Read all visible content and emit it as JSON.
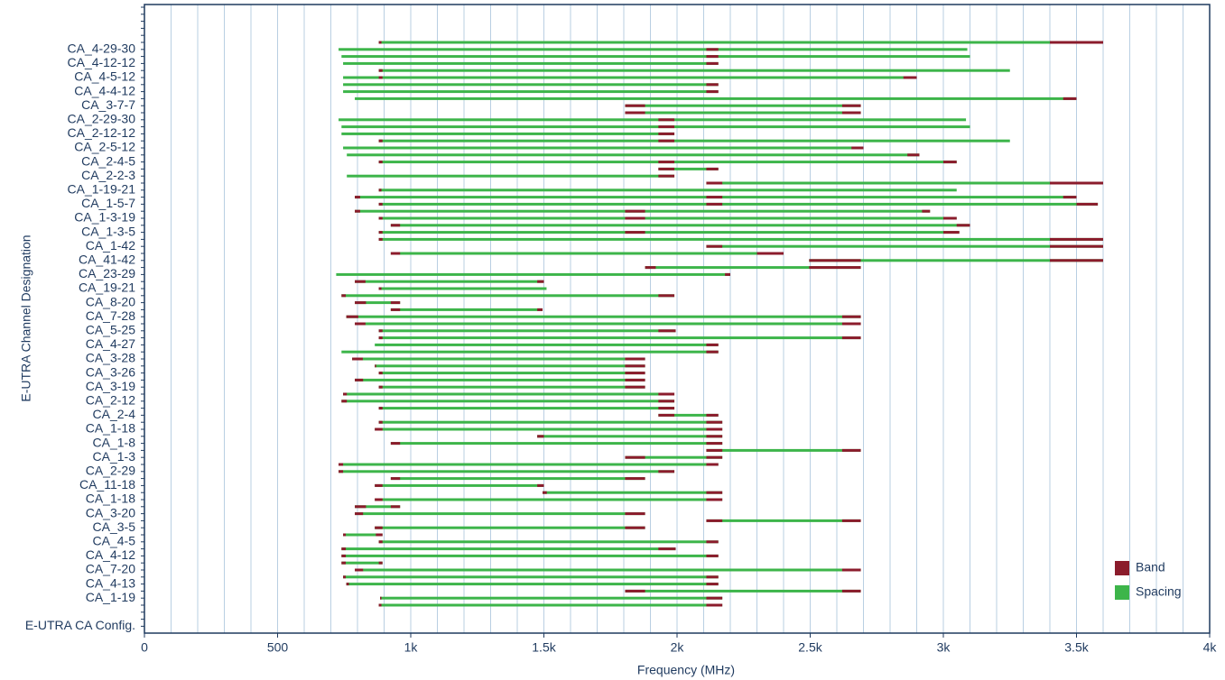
{
  "chart_data": {
    "type": "range",
    "xlabel": "Frequency (MHz)",
    "ylabel": "E-UTRA Channel Designation",
    "xlim": [
      0,
      4000
    ],
    "xticks": [
      0,
      500,
      {
        "value": 1000,
        "label": "1k"
      },
      {
        "value": 1500,
        "label": "1.5k"
      },
      {
        "value": 2000,
        "label": "2k"
      },
      {
        "value": 2500,
        "label": "2.5k"
      },
      {
        "value": 3000,
        "label": "3k"
      },
      {
        "value": 3500,
        "label": "3.5k"
      },
      {
        "value": 4000,
        "label": "4k"
      }
    ],
    "xgrid": [
      0,
      100,
      200,
      300,
      400,
      500,
      600,
      700,
      800,
      900,
      1000,
      1100,
      1200,
      1300,
      1400,
      1500,
      1600,
      1700,
      1800,
      1900,
      2000,
      2100,
      2200,
      2300,
      2400,
      2500,
      2600,
      2700,
      2800,
      2900,
      3000,
      3100,
      3200,
      3300,
      3400,
      3500,
      3600,
      3700,
      3800,
      3900,
      4000
    ],
    "legend": "bottom-right",
    "categories": [
      null,
      "CA_4-29-30",
      null,
      "CA_4-12-12",
      null,
      "CA_4-5-12",
      null,
      "CA_4-4-12",
      null,
      "CA_3-7-7",
      null,
      "CA_2-29-30",
      null,
      "CA_2-12-12",
      null,
      "CA_2-5-12",
      null,
      "CA_2-4-5",
      null,
      "CA_2-2-3",
      null,
      "CA_1-19-21",
      null,
      "CA_1-5-7",
      null,
      "CA_1-3-19",
      null,
      "CA_1-3-5",
      null,
      "CA_1-42",
      null,
      "CA_41-42",
      null,
      "CA_23-29",
      null,
      "CA_19-21",
      null,
      "CA_8-20",
      null,
      "CA_7-28",
      null,
      "CA_5-25",
      null,
      "CA_4-27",
      null,
      "CA_3-28",
      null,
      "CA_3-26",
      null,
      "CA_3-19",
      null,
      "CA_2-12",
      null,
      "CA_2-4",
      null,
      "CA_1-18",
      null,
      "CA_1-8",
      null,
      "CA_1-3",
      null,
      "CA_2-29",
      null,
      "CA_11-18",
      null,
      "CA_1-18",
      null,
      "CA_3-20",
      null,
      "CA_3-5",
      null,
      "CA_4-5",
      null,
      "CA_4-12",
      null,
      "CA_7-20",
      null,
      "CA_4-13",
      null,
      "CA_1-19",
      null,
      null,
      null,
      "E-UTRA CA Config."
    ],
    "series": [
      {
        "name": "Band",
        "color": "#8b1c2c",
        "values": [
          [
            [
              880,
              890
            ],
            [
              3400,
              3600
            ]
          ],
          [
            [
              2110,
              2155
            ]
          ],
          [
            [
              2110,
              2155
            ]
          ],
          [
            [
              2110,
              2155
            ]
          ],
          [
            [
              880,
              894
            ]
          ],
          [
            [
              880,
              894
            ],
            [
              2850,
              2900
            ]
          ],
          [
            [
              2110,
              2155
            ]
          ],
          [
            [
              2110,
              2155
            ]
          ],
          [
            [
              3450,
              3500
            ]
          ],
          [
            [
              1805,
              1880
            ],
            [
              2620,
              2690
            ]
          ],
          [
            [
              1805,
              1880
            ],
            [
              2620,
              2690
            ]
          ],
          [
            [
              1930,
              1990
            ]
          ],
          [
            [
              1930,
              1990
            ]
          ],
          [
            [
              1930,
              1990
            ]
          ],
          [
            [
              880,
              894
            ],
            [
              1930,
              1990
            ]
          ],
          [
            [
              2655,
              2700
            ]
          ],
          [
            [
              2865,
              2910
            ]
          ],
          [
            [
              880,
              894
            ],
            [
              1930,
              1990
            ],
            [
              3000,
              3050
            ]
          ],
          [
            [
              1930,
              1990
            ],
            [
              2110,
              2155
            ]
          ],
          [
            [
              1930,
              1990
            ]
          ],
          [
            [
              2110,
              2170
            ],
            [
              3400,
              3600
            ]
          ],
          [
            [
              880,
              890
            ]
          ],
          [
            [
              790,
              810
            ],
            [
              2110,
              2170
            ],
            [
              3450,
              3500
            ]
          ],
          [
            [
              880,
              894
            ],
            [
              2110,
              2170
            ],
            [
              3500,
              3580
            ]
          ],
          [
            [
              790,
              810
            ],
            [
              1805,
              1880
            ],
            [
              2920,
              2950
            ]
          ],
          [
            [
              880,
              894
            ],
            [
              1805,
              1880
            ],
            [
              3000,
              3050
            ]
          ],
          [
            [
              925,
              960
            ],
            [
              3050,
              3100
            ]
          ],
          [
            [
              880,
              894
            ],
            [
              1805,
              1880
            ],
            [
              3000,
              3060
            ]
          ],
          [
            [
              880,
              894
            ],
            [
              3400,
              3600
            ]
          ],
          [
            [
              2110,
              2170
            ],
            [
              3400,
              3600
            ]
          ],
          [
            [
              925,
              960
            ],
            [
              2300,
              2400
            ]
          ],
          [
            [
              2496,
              2690
            ],
            [
              3400,
              3600
            ]
          ],
          [
            [
              1880,
              1920
            ],
            [
              2496,
              2690
            ]
          ],
          [
            [
              2180,
              2200
            ]
          ],
          [
            [
              790,
              830
            ],
            [
              1475,
              1500
            ]
          ],
          [
            [
              880,
              890
            ]
          ],
          [
            [
              740,
              756
            ],
            [
              1930,
              1990
            ]
          ],
          [
            [
              790,
              832
            ],
            [
              925,
              960
            ]
          ],
          [
            [
              925,
              960
            ],
            [
              1475,
              1495
            ]
          ],
          [
            [
              758,
              803
            ],
            [
              2620,
              2690
            ]
          ],
          [
            [
              790,
              830
            ],
            [
              2620,
              2690
            ]
          ],
          [
            [
              880,
              894
            ],
            [
              1930,
              1995
            ]
          ],
          [
            [
              880,
              894
            ],
            [
              2620,
              2690
            ]
          ],
          [
            [
              2110,
              2155
            ]
          ],
          [
            [
              2110,
              2155
            ]
          ],
          [
            [
              780,
              820
            ],
            [
              1805,
              1880
            ]
          ],
          [
            [
              865,
              870
            ],
            [
              1805,
              1880
            ]
          ],
          [
            [
              880,
              894
            ],
            [
              1805,
              1880
            ]
          ],
          [
            [
              790,
              821
            ],
            [
              1805,
              1880
            ]
          ],
          [
            [
              880,
              894
            ],
            [
              1805,
              1880
            ]
          ],
          [
            [
              746,
              760
            ],
            [
              1930,
              1990
            ]
          ],
          [
            [
              740,
              760
            ],
            [
              1930,
              1990
            ]
          ],
          [
            [
              880,
              894
            ],
            [
              1930,
              1990
            ]
          ],
          [
            [
              1930,
              1990
            ],
            [
              2110,
              2155
            ]
          ],
          [
            [
              880,
              894
            ],
            [
              2110,
              2170
            ]
          ],
          [
            [
              865,
              894
            ],
            [
              2110,
              2170
            ]
          ],
          [
            [
              1475,
              1500
            ],
            [
              2110,
              2170
            ]
          ],
          [
            [
              925,
              960
            ],
            [
              2110,
              2170
            ]
          ],
          [
            [
              2110,
              2170
            ],
            [
              2620,
              2690
            ]
          ],
          [
            [
              1805,
              1880
            ],
            [
              2110,
              2170
            ]
          ],
          [
            [
              729,
              746
            ],
            [
              2110,
              2155
            ]
          ],
          [
            [
              729,
              746
            ],
            [
              1930,
              1990
            ]
          ],
          [
            [
              925,
              960
            ],
            [
              1805,
              1880
            ]
          ],
          [
            [
              865,
              894
            ],
            [
              1475,
              1500
            ]
          ],
          [
            [
              1495,
              1511
            ],
            [
              2110,
              2170
            ]
          ],
          [
            [
              865,
              894
            ],
            [
              2110,
              2170
            ]
          ],
          [
            [
              790,
              832
            ],
            [
              925,
              960
            ]
          ],
          [
            [
              790,
              821
            ],
            [
              1805,
              1880
            ]
          ],
          [
            [
              2110,
              2170
            ],
            [
              2620,
              2690
            ]
          ],
          [
            [
              865,
              894
            ],
            [
              1805,
              1880
            ]
          ],
          [
            [
              746,
              756
            ],
            [
              869,
              894
            ]
          ],
          [
            [
              880,
              894
            ],
            [
              2110,
              2155
            ]
          ],
          [
            [
              740,
              756
            ],
            [
              1930,
              1995
            ]
          ],
          [
            [
              740,
              756
            ],
            [
              2110,
              2155
            ]
          ],
          [
            [
              740,
              756
            ],
            [
              880,
              894
            ]
          ],
          [
            [
              790,
              821
            ],
            [
              2620,
              2690
            ]
          ],
          [
            [
              746,
              756
            ],
            [
              2110,
              2155
            ]
          ],
          [
            [
              758,
              768
            ],
            [
              2110,
              2155
            ]
          ],
          [
            [
              1805,
              1880
            ],
            [
              2620,
              2690
            ]
          ],
          [
            [
              885,
              890
            ],
            [
              2110,
              2170
            ]
          ],
          [
            [
              880,
              890
            ],
            [
              2110,
              2170
            ]
          ],
          null,
          null,
          null
        ]
      },
      {
        "name": "Spacing",
        "color": "#3db54a",
        "values": [
          [
            880,
            3600
          ],
          [
            729,
            3090
          ],
          [
            740,
            3100
          ],
          [
            746,
            2155
          ],
          [
            880,
            3250
          ],
          [
            746,
            2900
          ],
          [
            746,
            2155
          ],
          [
            746,
            2155
          ],
          [
            790,
            3500
          ],
          [
            1805,
            2690
          ],
          [
            1805,
            2690
          ],
          [
            729,
            3085
          ],
          [
            740,
            3100
          ],
          [
            740,
            1990
          ],
          [
            880,
            3250
          ],
          [
            746,
            2700
          ],
          [
            760,
            2910
          ],
          [
            880,
            3050
          ],
          [
            1930,
            2155
          ],
          [
            760,
            1990
          ],
          [
            2110,
            3600
          ],
          [
            880,
            3050
          ],
          [
            790,
            3500
          ],
          [
            880,
            3580
          ],
          [
            790,
            2950
          ],
          [
            880,
            3050
          ],
          [
            925,
            3100
          ],
          [
            880,
            3060
          ],
          [
            880,
            3600
          ],
          [
            2110,
            3600
          ],
          [
            925,
            2400
          ],
          [
            2496,
            3600
          ],
          [
            1880,
            2690
          ],
          [
            720,
            2200
          ],
          [
            790,
            1500
          ],
          [
            880,
            1510
          ],
          [
            740,
            1990
          ],
          [
            790,
            960
          ],
          [
            925,
            1495
          ],
          [
            758,
            2690
          ],
          [
            790,
            2690
          ],
          [
            880,
            1995
          ],
          [
            880,
            2690
          ],
          [
            865,
            2155
          ],
          [
            740,
            2155
          ],
          [
            780,
            1880
          ],
          [
            865,
            1880
          ],
          [
            880,
            1880
          ],
          [
            790,
            1880
          ],
          [
            880,
            1880
          ],
          [
            746,
            1990
          ],
          [
            740,
            1990
          ],
          [
            880,
            1990
          ],
          [
            1930,
            2155
          ],
          [
            880,
            2170
          ],
          [
            865,
            2170
          ],
          [
            1475,
            2170
          ],
          [
            925,
            2170
          ],
          [
            2110,
            2690
          ],
          [
            1805,
            2170
          ],
          [
            729,
            2155
          ],
          [
            729,
            1990
          ],
          [
            925,
            1880
          ],
          [
            865,
            1500
          ],
          [
            1495,
            2170
          ],
          [
            865,
            2170
          ],
          [
            790,
            960
          ],
          [
            790,
            1880
          ],
          [
            2110,
            2690
          ],
          [
            865,
            1880
          ],
          [
            746,
            894
          ],
          [
            880,
            2155
          ],
          [
            740,
            1995
          ],
          [
            740,
            2155
          ],
          [
            740,
            894
          ],
          [
            790,
            2690
          ],
          [
            746,
            2155
          ],
          [
            758,
            2155
          ],
          [
            1805,
            2690
          ],
          [
            885,
            2170
          ],
          [
            880,
            2170
          ],
          null,
          null,
          null
        ]
      }
    ]
  }
}
